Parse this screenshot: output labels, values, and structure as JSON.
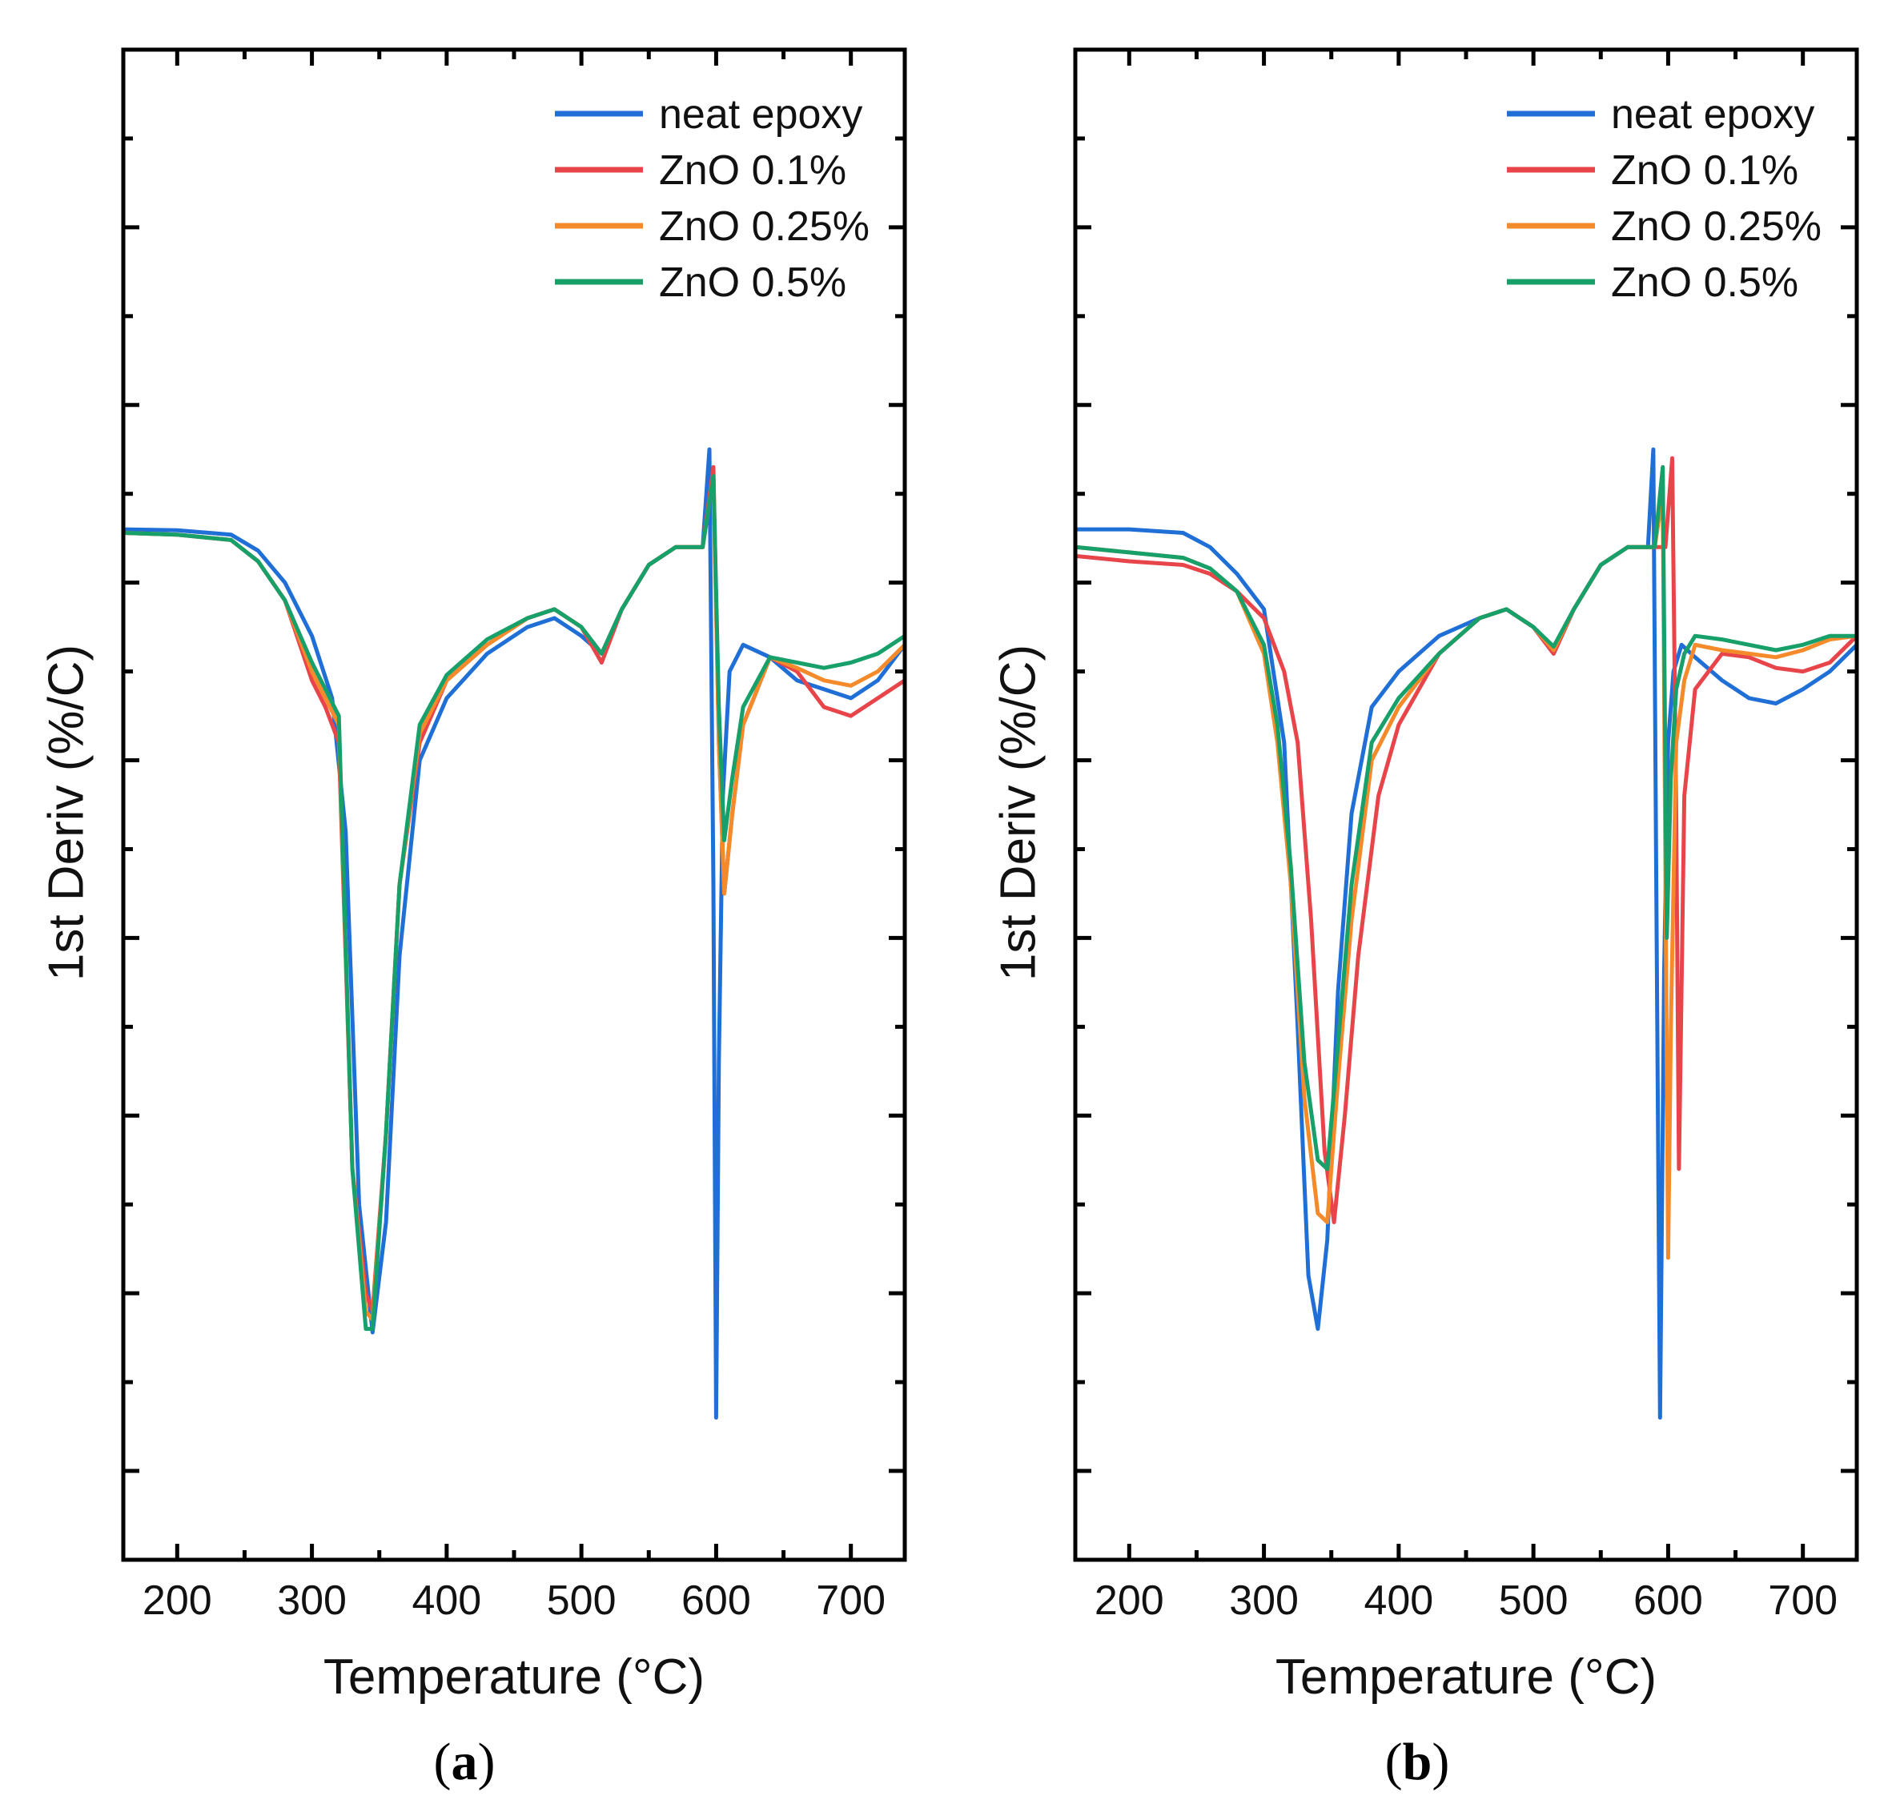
{
  "colors": {
    "neat epoxy": "#1f6fd6",
    "ZnO 0.1%": "#e8454a",
    "ZnO 0.25%": "#f58a2a",
    "ZnO 0.5%": "#17a06a"
  },
  "chart_data": [
    {
      "type": "line",
      "panel_label_open": "(",
      "panel_label_letter": "a",
      "panel_label_close": ")",
      "xlabel": "Temperature (°C)",
      "ylabel": "1st Deriv (%/C)",
      "xlim": [
        160,
        740
      ],
      "xticks": [
        200,
        300,
        400,
        500,
        600,
        700
      ],
      "y_tick_labels_shown": false,
      "legend_position": "top-right",
      "series": [
        {
          "name": "neat epoxy",
          "x": [
            160,
            200,
            240,
            260,
            280,
            300,
            315,
            325,
            335,
            345,
            355,
            365,
            380,
            400,
            430,
            460,
            480,
            500,
            515,
            530,
            550,
            570,
            590,
            595,
            598,
            600,
            602,
            605,
            610,
            620,
            640,
            660,
            680,
            700,
            720,
            740
          ],
          "y": [
            0.0,
            -0.005,
            -0.03,
            -0.12,
            -0.3,
            -0.6,
            -0.95,
            -1.7,
            -3.8,
            -4.52,
            -3.9,
            -2.4,
            -1.3,
            -0.95,
            -0.7,
            -0.55,
            -0.5,
            -0.6,
            -0.7,
            -0.45,
            -0.2,
            -0.1,
            -0.1,
            0.45,
            -2.0,
            -5.0,
            -3.0,
            -1.5,
            -0.8,
            -0.65,
            -0.72,
            -0.85,
            -0.9,
            -0.95,
            -0.85,
            -0.65
          ]
        },
        {
          "name": "ZnO 0.1%",
          "x": [
            160,
            200,
            240,
            260,
            280,
            300,
            310,
            320,
            330,
            340,
            345,
            355,
            365,
            380,
            400,
            430,
            460,
            480,
            500,
            515,
            530,
            550,
            570,
            590,
            598,
            602,
            606,
            612,
            620,
            640,
            660,
            680,
            700,
            720,
            740
          ],
          "y": [
            -0.02,
            -0.03,
            -0.06,
            -0.18,
            -0.4,
            -0.85,
            -1.0,
            -1.2,
            -3.6,
            -4.3,
            -4.4,
            -3.4,
            -2.0,
            -1.2,
            -0.85,
            -0.65,
            -0.5,
            -0.45,
            -0.55,
            -0.75,
            -0.45,
            -0.2,
            -0.1,
            -0.1,
            0.35,
            -1.2,
            -2.05,
            -1.6,
            -1.1,
            -0.72,
            -0.8,
            -1.0,
            -1.05,
            -0.95,
            -0.85
          ]
        },
        {
          "name": "ZnO 0.25%",
          "x": [
            160,
            200,
            240,
            260,
            280,
            300,
            310,
            320,
            330,
            340,
            345,
            355,
            365,
            380,
            400,
            430,
            460,
            480,
            500,
            515,
            530,
            550,
            570,
            590,
            598,
            602,
            606,
            612,
            620,
            640,
            660,
            680,
            700,
            720,
            740
          ],
          "y": [
            -0.02,
            -0.03,
            -0.06,
            -0.18,
            -0.4,
            -0.8,
            -0.95,
            -1.1,
            -3.6,
            -4.4,
            -4.45,
            -3.4,
            -2.0,
            -1.15,
            -0.85,
            -0.65,
            -0.5,
            -0.45,
            -0.55,
            -0.7,
            -0.45,
            -0.2,
            -0.1,
            -0.1,
            0.3,
            -1.2,
            -2.05,
            -1.6,
            -1.1,
            -0.72,
            -0.78,
            -0.85,
            -0.88,
            -0.8,
            -0.65
          ]
        },
        {
          "name": "ZnO 0.5%",
          "x": [
            160,
            200,
            240,
            260,
            280,
            300,
            310,
            320,
            330,
            340,
            345,
            355,
            365,
            380,
            400,
            430,
            460,
            480,
            500,
            515,
            530,
            550,
            570,
            590,
            598,
            602,
            606,
            612,
            620,
            640,
            660,
            680,
            700,
            720,
            740
          ],
          "y": [
            -0.02,
            -0.03,
            -0.06,
            -0.18,
            -0.4,
            -0.75,
            -0.9,
            -1.05,
            -3.6,
            -4.5,
            -4.5,
            -3.4,
            -2.0,
            -1.1,
            -0.82,
            -0.62,
            -0.5,
            -0.45,
            -0.55,
            -0.7,
            -0.45,
            -0.2,
            -0.1,
            -0.1,
            0.3,
            -1.0,
            -1.75,
            -1.4,
            -1.0,
            -0.72,
            -0.75,
            -0.78,
            -0.75,
            -0.7,
            -0.6
          ]
        }
      ]
    },
    {
      "type": "line",
      "panel_label_open": "(",
      "panel_label_letter": "b",
      "panel_label_close": ")",
      "xlabel": "Temperature (°C)",
      "ylabel": "1st Deriv (%/C)",
      "xlim": [
        160,
        740
      ],
      "xticks": [
        200,
        300,
        400,
        500,
        600,
        700
      ],
      "y_tick_labels_shown": false,
      "legend_position": "top-right",
      "series": [
        {
          "name": "neat epoxy",
          "x": [
            160,
            200,
            240,
            260,
            280,
            300,
            315,
            325,
            333,
            340,
            347,
            355,
            365,
            380,
            400,
            430,
            460,
            480,
            500,
            515,
            530,
            550,
            570,
            585,
            589,
            591,
            594,
            597,
            600,
            604,
            610,
            620,
            640,
            660,
            680,
            700,
            720,
            740
          ],
          "y": [
            0.0,
            0.0,
            -0.02,
            -0.1,
            -0.25,
            -0.45,
            -1.2,
            -2.8,
            -4.2,
            -4.5,
            -4.0,
            -2.6,
            -1.6,
            -1.0,
            -0.8,
            -0.6,
            -0.5,
            -0.45,
            -0.55,
            -0.7,
            -0.45,
            -0.2,
            -0.1,
            -0.1,
            0.45,
            -1.8,
            -5.0,
            -2.5,
            -1.2,
            -0.8,
            -0.65,
            -0.72,
            -0.85,
            -0.95,
            -0.98,
            -0.9,
            -0.8,
            -0.65
          ]
        },
        {
          "name": "ZnO 0.1%",
          "x": [
            160,
            200,
            240,
            260,
            280,
            300,
            315,
            325,
            335,
            345,
            352,
            360,
            370,
            385,
            400,
            430,
            460,
            480,
            500,
            515,
            530,
            550,
            570,
            590,
            598,
            603,
            606,
            608,
            612,
            620,
            640,
            660,
            680,
            700,
            720,
            740
          ],
          "y": [
            -0.15,
            -0.18,
            -0.2,
            -0.25,
            -0.35,
            -0.5,
            -0.8,
            -1.2,
            -2.2,
            -3.5,
            -3.9,
            -3.3,
            -2.4,
            -1.5,
            -1.1,
            -0.7,
            -0.5,
            -0.45,
            -0.55,
            -0.7,
            -0.45,
            -0.2,
            -0.1,
            -0.1,
            -0.1,
            0.4,
            -1.6,
            -3.6,
            -1.5,
            -0.9,
            -0.7,
            -0.72,
            -0.78,
            -0.8,
            -0.75,
            -0.6
          ]
        },
        {
          "name": "ZnO 0.25%",
          "x": [
            160,
            200,
            240,
            260,
            280,
            300,
            310,
            320,
            330,
            340,
            347,
            355,
            365,
            380,
            400,
            430,
            460,
            480,
            500,
            515,
            530,
            550,
            570,
            590,
            596,
            600,
            602,
            606,
            612,
            620,
            640,
            660,
            680,
            700,
            720,
            740
          ],
          "y": [
            -0.1,
            -0.13,
            -0.16,
            -0.22,
            -0.35,
            -0.7,
            -1.2,
            -2.0,
            -3.2,
            -3.85,
            -3.9,
            -3.1,
            -2.2,
            -1.3,
            -1.0,
            -0.7,
            -0.5,
            -0.45,
            -0.55,
            -0.68,
            -0.45,
            -0.2,
            -0.1,
            -0.1,
            0.2,
            -4.1,
            -2.8,
            -1.2,
            -0.85,
            -0.65,
            -0.68,
            -0.7,
            -0.72,
            -0.68,
            -0.62,
            -0.6
          ]
        },
        {
          "name": "ZnO 0.5%",
          "x": [
            160,
            200,
            240,
            260,
            280,
            300,
            310,
            320,
            330,
            340,
            347,
            355,
            365,
            380,
            400,
            430,
            460,
            480,
            500,
            515,
            530,
            550,
            570,
            590,
            596,
            599,
            602,
            606,
            612,
            620,
            640,
            660,
            680,
            700,
            720,
            740
          ],
          "y": [
            -0.1,
            -0.13,
            -0.16,
            -0.22,
            -0.35,
            -0.65,
            -1.1,
            -1.9,
            -3.0,
            -3.55,
            -3.6,
            -2.9,
            -2.0,
            -1.2,
            -0.95,
            -0.7,
            -0.5,
            -0.45,
            -0.55,
            -0.66,
            -0.45,
            -0.2,
            -0.1,
            -0.1,
            0.35,
            -2.3,
            -1.4,
            -0.9,
            -0.7,
            -0.6,
            -0.62,
            -0.65,
            -0.68,
            -0.65,
            -0.6,
            -0.6
          ]
        }
      ]
    }
  ]
}
